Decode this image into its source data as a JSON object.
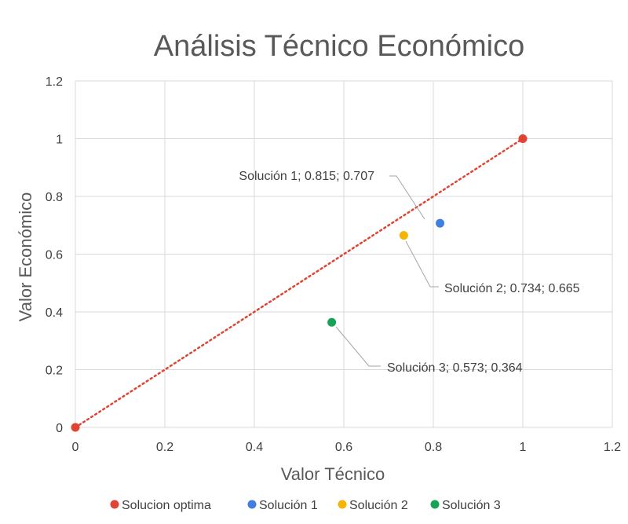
{
  "chart_data": {
    "type": "scatter",
    "title": "Análisis Técnico Económico",
    "xlabel": "Valor Técnico",
    "ylabel": "Valor Económico",
    "xlim": [
      0,
      1.2
    ],
    "ylim": [
      0,
      1.2
    ],
    "xticks": [
      "0",
      "0.2",
      "0.4",
      "0.6",
      "0.8",
      "1",
      "1.2"
    ],
    "yticks": [
      "0",
      "0.2",
      "0.4",
      "0.6",
      "0.8",
      "1",
      "1.2"
    ],
    "grid": true,
    "legend_position": "bottom",
    "series": [
      {
        "name": "Solucion optima",
        "color": "#e04333",
        "points": [
          {
            "x": 0,
            "y": 0
          },
          {
            "x": 1,
            "y": 1
          }
        ],
        "line": "dotted"
      },
      {
        "name": "Solución 1",
        "color": "#3f7fdf",
        "points": [
          {
            "x": 0.815,
            "y": 0.707
          }
        ],
        "label": "Solución 1; 0.815; 0.707"
      },
      {
        "name": "Solución 2",
        "color": "#f4b400",
        "points": [
          {
            "x": 0.734,
            "y": 0.665
          }
        ],
        "label": "Solución 2; 0.734; 0.665"
      },
      {
        "name": "Solución 3",
        "color": "#17a356",
        "points": [
          {
            "x": 0.573,
            "y": 0.364
          }
        ],
        "label": "Solución 3; 0.573; 0.364"
      }
    ]
  }
}
